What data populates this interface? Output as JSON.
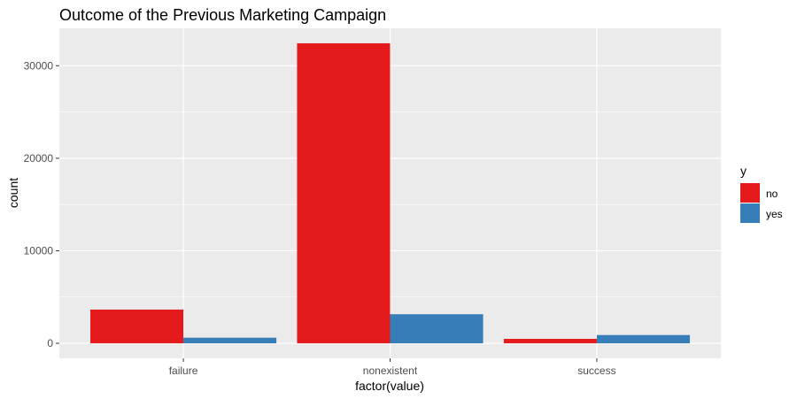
{
  "chart_data": {
    "type": "bar",
    "title": "Outcome of the Previous Marketing Campaign",
    "xlabel": "factor(value)",
    "ylabel": "count",
    "categories": [
      "failure",
      "nonexistent",
      "success"
    ],
    "series": [
      {
        "name": "no",
        "values": [
          3647,
          32422,
          479
        ]
      },
      {
        "name": "yes",
        "values": [
          605,
          3141,
          894
        ]
      }
    ],
    "colors": {
      "no": "#E41A1C",
      "yes": "#377EB8"
    },
    "ylim": [
      -1621,
      34043
    ],
    "yticks": [
      0,
      10000,
      20000,
      30000
    ],
    "ytick_labels": [
      "0",
      "10000",
      "20000",
      "30000"
    ],
    "grid": true,
    "legend": {
      "title": "y",
      "position": "right",
      "entries": [
        "no",
        "yes"
      ]
    },
    "panel_background": "#EBEBEB"
  }
}
